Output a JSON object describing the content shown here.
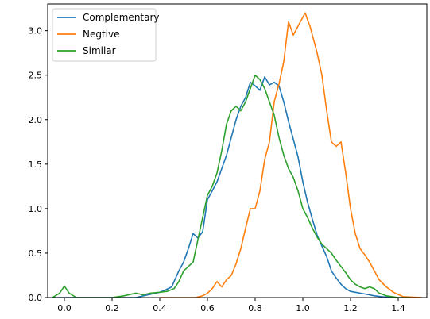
{
  "chart_data": {
    "type": "line",
    "title": "",
    "xlabel": "",
    "ylabel": "",
    "xlim": [
      -0.07,
      1.52
    ],
    "ylim": [
      0,
      3.3
    ],
    "grid": false,
    "legend_position": "top-left",
    "x_ticks": [
      0.0,
      0.2,
      0.4,
      0.6,
      0.8,
      1.0,
      1.2,
      1.4
    ],
    "x_tick_labels": [
      "0.0",
      "0.2",
      "0.4",
      "0.6",
      "0.8",
      "1.0",
      "1.2",
      "1.4"
    ],
    "y_ticks": [
      0.0,
      0.5,
      1.0,
      1.5,
      2.0,
      2.5,
      3.0
    ],
    "y_tick_labels": [
      "0.0",
      "0.5",
      "1.0",
      "1.5",
      "2.0",
      "2.5",
      "3.0"
    ],
    "series": [
      {
        "name": "Complementary",
        "color": "#1f77b4",
        "x": [
          -0.05,
          0.3,
          0.35,
          0.4,
          0.42,
          0.45,
          0.48,
          0.5,
          0.52,
          0.54,
          0.56,
          0.58,
          0.6,
          0.62,
          0.64,
          0.66,
          0.68,
          0.7,
          0.72,
          0.74,
          0.76,
          0.78,
          0.8,
          0.82,
          0.84,
          0.86,
          0.88,
          0.9,
          0.92,
          0.94,
          0.96,
          0.98,
          1.0,
          1.02,
          1.04,
          1.06,
          1.08,
          1.1,
          1.12,
          1.14,
          1.16,
          1.18,
          1.2,
          1.22,
          1.24,
          1.26,
          1.28,
          1.3,
          1.33,
          1.38,
          1.42
        ],
        "y": [
          0.0,
          0.0,
          0.03,
          0.06,
          0.08,
          0.12,
          0.3,
          0.4,
          0.55,
          0.72,
          0.67,
          0.74,
          1.1,
          1.2,
          1.3,
          1.45,
          1.6,
          1.8,
          2.0,
          2.15,
          2.25,
          2.42,
          2.38,
          2.33,
          2.48,
          2.39,
          2.42,
          2.38,
          2.2,
          1.98,
          1.78,
          1.58,
          1.3,
          1.07,
          0.88,
          0.7,
          0.58,
          0.46,
          0.3,
          0.22,
          0.15,
          0.1,
          0.07,
          0.06,
          0.05,
          0.04,
          0.03,
          0.02,
          0.01,
          0.0,
          0.0
        ]
      },
      {
        "name": "Negtive",
        "color": "#ff7f0e",
        "x": [
          0.4,
          0.55,
          0.58,
          0.6,
          0.62,
          0.64,
          0.66,
          0.68,
          0.7,
          0.72,
          0.74,
          0.76,
          0.78,
          0.8,
          0.82,
          0.84,
          0.86,
          0.88,
          0.9,
          0.92,
          0.94,
          0.96,
          0.98,
          1.0,
          1.01,
          1.02,
          1.03,
          1.04,
          1.06,
          1.08,
          1.1,
          1.12,
          1.14,
          1.16,
          1.18,
          1.2,
          1.22,
          1.24,
          1.26,
          1.28,
          1.3,
          1.32,
          1.35,
          1.38,
          1.42,
          1.5
        ],
        "y": [
          0.0,
          0.0,
          0.02,
          0.05,
          0.1,
          0.18,
          0.12,
          0.2,
          0.25,
          0.38,
          0.55,
          0.78,
          1.0,
          1.0,
          1.2,
          1.55,
          1.75,
          2.2,
          2.4,
          2.65,
          3.1,
          2.95,
          3.05,
          3.15,
          3.2,
          3.12,
          3.05,
          2.95,
          2.75,
          2.5,
          2.1,
          1.75,
          1.7,
          1.75,
          1.4,
          1.0,
          0.72,
          0.55,
          0.48,
          0.4,
          0.3,
          0.2,
          0.12,
          0.06,
          0.01,
          0.0
        ]
      },
      {
        "name": "Similar",
        "color": "#2ca02c",
        "x": [
          -0.05,
          -0.02,
          0.0,
          0.02,
          0.05,
          0.1,
          0.2,
          0.25,
          0.3,
          0.33,
          0.36,
          0.4,
          0.43,
          0.46,
          0.48,
          0.5,
          0.52,
          0.54,
          0.56,
          0.58,
          0.6,
          0.62,
          0.64,
          0.66,
          0.68,
          0.7,
          0.72,
          0.74,
          0.76,
          0.78,
          0.8,
          0.82,
          0.84,
          0.86,
          0.88,
          0.9,
          0.92,
          0.94,
          0.96,
          0.98,
          1.0,
          1.02,
          1.04,
          1.06,
          1.08,
          1.1,
          1.12,
          1.14,
          1.16,
          1.18,
          1.2,
          1.22,
          1.24,
          1.26,
          1.28,
          1.3,
          1.32,
          1.35,
          1.4,
          1.45
        ],
        "y": [
          0.0,
          0.05,
          0.13,
          0.05,
          0.0,
          0.0,
          0.0,
          0.02,
          0.05,
          0.03,
          0.05,
          0.06,
          0.07,
          0.1,
          0.18,
          0.3,
          0.35,
          0.4,
          0.65,
          0.9,
          1.15,
          1.25,
          1.4,
          1.65,
          1.95,
          2.1,
          2.15,
          2.1,
          2.2,
          2.35,
          2.5,
          2.45,
          2.35,
          2.2,
          2.05,
          1.8,
          1.6,
          1.45,
          1.35,
          1.2,
          1.0,
          0.9,
          0.78,
          0.68,
          0.6,
          0.55,
          0.5,
          0.42,
          0.35,
          0.28,
          0.2,
          0.15,
          0.12,
          0.1,
          0.12,
          0.1,
          0.05,
          0.02,
          0.0,
          0.0
        ]
      }
    ]
  }
}
